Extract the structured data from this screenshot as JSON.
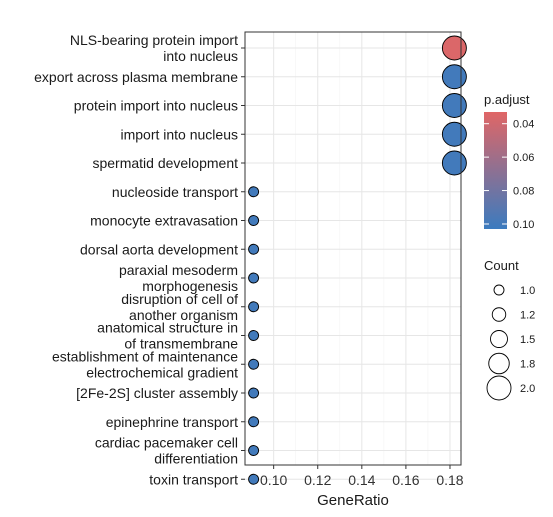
{
  "chart_data": {
    "type": "scatter",
    "xlabel": "GeneRatio",
    "ylabel": "",
    "xlim": [
      0.087,
      0.185
    ],
    "x_ticks": [
      "0.10",
      "0.12",
      "0.14",
      "0.16",
      "0.18"
    ],
    "x_tick_values": [
      0.1,
      0.12,
      0.14,
      0.16,
      0.18
    ],
    "grid": true,
    "legend_placement": "right",
    "categories": [
      {
        "lines": [
          "NLS-bearing protein import",
          "into nucleus"
        ]
      },
      {
        "lines": [
          "export across plasma membrane"
        ]
      },
      {
        "lines": [
          "protein import into nucleus"
        ]
      },
      {
        "lines": [
          "import into nucleus"
        ]
      },
      {
        "lines": [
          "spermatid development"
        ]
      },
      {
        "lines": [
          "nucleoside transport"
        ]
      },
      {
        "lines": [
          "monocyte extravasation"
        ]
      },
      {
        "lines": [
          "dorsal aorta development"
        ]
      },
      {
        "lines": [
          "paraxial mesoderm",
          "morphogenesis"
        ]
      },
      {
        "lines": [
          "disruption of cell of",
          "another organism"
        ]
      },
      {
        "lines": [
          "anatomical structure in",
          "of transmembrane"
        ]
      },
      {
        "lines": [
          "establishment of maintenance",
          "electrochemical gradient"
        ]
      },
      {
        "lines": [
          "[2Fe-2S] cluster assembly"
        ]
      },
      {
        "lines": [
          "epinephrine transport"
        ]
      },
      {
        "lines": [
          "cardiac pacemaker cell",
          "differentiation"
        ]
      },
      {
        "lines": [
          "toxin transport"
        ]
      }
    ],
    "points": [
      {
        "x": 0.182,
        "count": 2,
        "p_adjust": 0.035
      },
      {
        "x": 0.182,
        "count": 2,
        "p_adjust": 0.1
      },
      {
        "x": 0.182,
        "count": 2,
        "p_adjust": 0.1
      },
      {
        "x": 0.182,
        "count": 2,
        "p_adjust": 0.1
      },
      {
        "x": 0.182,
        "count": 2,
        "p_adjust": 0.1
      },
      {
        "x": 0.0909,
        "count": 1,
        "p_adjust": 0.1
      },
      {
        "x": 0.0909,
        "count": 1,
        "p_adjust": 0.1
      },
      {
        "x": 0.0909,
        "count": 1,
        "p_adjust": 0.1
      },
      {
        "x": 0.0909,
        "count": 1,
        "p_adjust": 0.1
      },
      {
        "x": 0.0909,
        "count": 1,
        "p_adjust": 0.1
      },
      {
        "x": 0.0909,
        "count": 1,
        "p_adjust": 0.1
      },
      {
        "x": 0.0909,
        "count": 1,
        "p_adjust": 0.1
      },
      {
        "x": 0.0909,
        "count": 1,
        "p_adjust": 0.1
      },
      {
        "x": 0.0909,
        "count": 1,
        "p_adjust": 0.1
      },
      {
        "x": 0.0909,
        "count": 1,
        "p_adjust": 0.1
      },
      {
        "x": 0.0909,
        "count": 1,
        "p_adjust": 0.1
      }
    ],
    "color_legend": {
      "title": "p.adjust",
      "labels": [
        "0.04",
        "0.06",
        "0.08",
        "0.10"
      ],
      "values": [
        0.04,
        0.06,
        0.08,
        0.1
      ],
      "range": [
        0.033,
        0.103
      ],
      "low_color": "#E06666",
      "high_color": "#3B7BBF"
    },
    "size_legend": {
      "title": "Count",
      "labels": [
        "1.0",
        "1.2",
        "1.5",
        "1.8",
        "2.0"
      ],
      "values": [
        1.0,
        1.25,
        1.5,
        1.75,
        2.0
      ]
    }
  }
}
